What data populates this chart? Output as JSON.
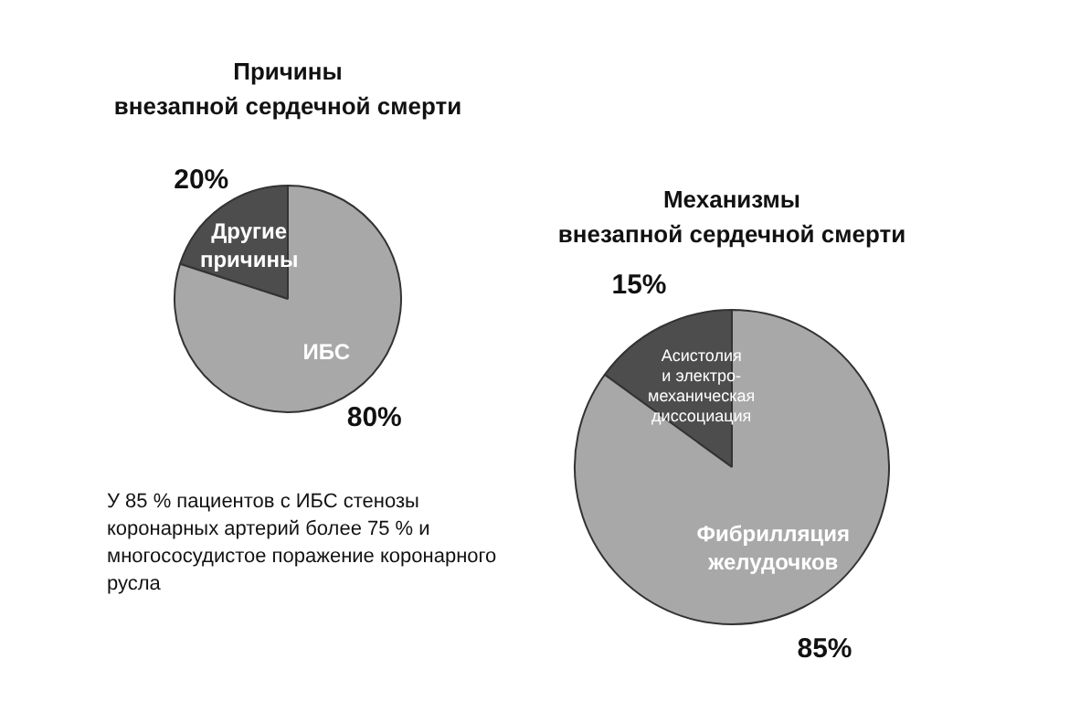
{
  "chart_data": [
    {
      "type": "pie",
      "title": "Причины\nвнезапной сердечной смерти",
      "categories": [
        "Другие\nпричины",
        "ИБС"
      ],
      "values": [
        20,
        80
      ],
      "colors": [
        "#4d4d4d",
        "#a8a8a8"
      ],
      "value_labels": [
        "20%",
        "80%"
      ],
      "annotations": [
        "У 85 % пациентов с ИБС стенозы\nкоронарных артерий более 75 % и\nмногососудистое поражение коронарного\nрусла"
      ]
    },
    {
      "type": "pie",
      "title": "Механизмы\nвнезапной сердечной смерти",
      "categories": [
        "Асистолия\nи электро-\nмеханическая\nдиссоциация",
        "Фибрилляция\nжелудочков"
      ],
      "values": [
        15,
        85
      ],
      "colors": [
        "#4d4d4d",
        "#a8a8a8"
      ],
      "value_labels": [
        "15%",
        "85%"
      ]
    }
  ]
}
